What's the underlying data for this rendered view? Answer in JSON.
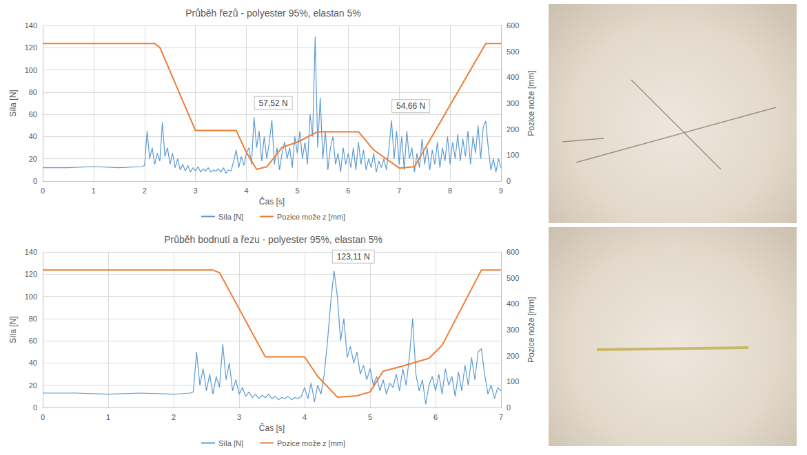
{
  "chart_data": [
    {
      "type": "line",
      "title": "Průběh řezů - polyester 95%, elastan 5%",
      "x_label": "Čas [s]",
      "y_label": "Síla [N]",
      "y2_label": "Pozice nože [mm]",
      "xlim": [
        0,
        9
      ],
      "xticks": [
        0,
        1,
        2,
        3,
        4,
        5,
        6,
        7,
        8,
        9
      ],
      "ylim": [
        0,
        140
      ],
      "yticks": [
        0,
        20,
        40,
        60,
        80,
        100,
        120,
        140
      ],
      "y2lim": [
        0,
        600
      ],
      "y2ticks": [
        0,
        100,
        200,
        300,
        400,
        500,
        600
      ],
      "grid": true,
      "legend": "bottom",
      "series": [
        {
          "name": "Síla [N]",
          "color": "#5b9bd5",
          "axis": "y",
          "x": [
            0,
            0.5,
            1,
            1.5,
            1.95,
            2,
            2.05,
            2.1,
            2.15,
            2.2,
            2.25,
            2.3,
            2.35,
            2.4,
            2.45,
            2.5,
            2.55,
            2.6,
            2.65,
            2.7,
            2.75,
            2.8,
            2.85,
            2.9,
            2.95,
            3,
            3.05,
            3.1,
            3.15,
            3.2,
            3.25,
            3.3,
            3.35,
            3.4,
            3.45,
            3.5,
            3.55,
            3.6,
            3.65,
            3.7,
            3.75,
            3.8,
            3.85,
            3.9,
            3.95,
            4,
            4.05,
            4.1,
            4.15,
            4.2,
            4.25,
            4.3,
            4.35,
            4.4,
            4.45,
            4.5,
            4.55,
            4.6,
            4.65,
            4.7,
            4.75,
            4.8,
            4.85,
            4.9,
            4.95,
            5,
            5.05,
            5.1,
            5.15,
            5.2,
            5.25,
            5.3,
            5.35,
            5.4,
            5.45,
            5.5,
            5.55,
            5.6,
            5.65,
            5.7,
            5.75,
            5.8,
            5.85,
            5.9,
            5.95,
            6,
            6.05,
            6.1,
            6.15,
            6.2,
            6.25,
            6.3,
            6.35,
            6.4,
            6.45,
            6.5,
            6.55,
            6.6,
            6.65,
            6.7,
            6.75,
            6.8,
            6.85,
            6.9,
            6.95,
            7,
            7.05,
            7.1,
            7.15,
            7.2,
            7.25,
            7.3,
            7.35,
            7.4,
            7.45,
            7.5,
            7.55,
            7.6,
            7.65,
            7.7,
            7.75,
            7.8,
            7.85,
            7.9,
            7.95,
            8,
            8.05,
            8.1,
            8.15,
            8.2,
            8.25,
            8.3,
            8.35,
            8.4,
            8.45,
            8.5,
            8.55,
            8.6,
            8.65,
            8.7,
            8.75,
            8.8,
            8.85,
            8.9,
            8.95,
            9
          ],
          "values": [
            12,
            12,
            13,
            12,
            13,
            14,
            45,
            20,
            30,
            15,
            25,
            18,
            53,
            22,
            30,
            15,
            25,
            12,
            20,
            10,
            15,
            9,
            14,
            8,
            12,
            9,
            13,
            8,
            11,
            9,
            12,
            8,
            10,
            9,
            11,
            8,
            12,
            7,
            10,
            9,
            18,
            28,
            12,
            22,
            14,
            25,
            30,
            15,
            57.52,
            30,
            45,
            18,
            40,
            20,
            35,
            55,
            15,
            30,
            10,
            25,
            35,
            20,
            30,
            12,
            40,
            25,
            45,
            20,
            35,
            15,
            60,
            40,
            130,
            30,
            75,
            20,
            45,
            10,
            30,
            40,
            15,
            25,
            8,
            30,
            15,
            25,
            12,
            30,
            10,
            35,
            15,
            28,
            10,
            20,
            12,
            25,
            8,
            18,
            12,
            20,
            10,
            30,
            54.66,
            20,
            45,
            15,
            40,
            10,
            45,
            20,
            30,
            8,
            25,
            12,
            38,
            15,
            30,
            10,
            28,
            15,
            35,
            12,
            30,
            18,
            40,
            15,
            35,
            20,
            42,
            18,
            38,
            22,
            45,
            15,
            40,
            25,
            50,
            20,
            48,
            54,
            30,
            10,
            20,
            8,
            20,
            12
          ]
        },
        {
          "name": "Pozice može z [mm]",
          "color": "#ed7d31",
          "axis": "y2",
          "x": [
            0,
            2.2,
            2.3,
            3.0,
            3.8,
            4.0,
            4.2,
            4.4,
            4.7,
            5.0,
            5.4,
            6.2,
            6.5,
            7.0,
            7.3,
            8.7,
            9.0
          ],
          "values": [
            530,
            530,
            515,
            195,
            195,
            110,
            45,
            55,
            130,
            150,
            190,
            190,
            120,
            50,
            55,
            530,
            530
          ]
        }
      ],
      "annotations": [
        {
          "text": "57,52 N",
          "x": 4.15,
          "y": 57.52
        },
        {
          "text": "54,66 N",
          "x": 6.85,
          "y": 54.66
        }
      ]
    },
    {
      "type": "line",
      "title": "Průběh bodnutí a řezu - polyester 95%, elastan 5%",
      "x_label": "Čas [s]",
      "y_label": "Síla [N]",
      "y2_label": "Pozice nože [mm]",
      "xlim": [
        0,
        7
      ],
      "xticks": [
        0,
        1,
        2,
        3,
        4,
        5,
        6,
        7
      ],
      "ylim": [
        0,
        140
      ],
      "yticks": [
        0,
        20,
        40,
        60,
        80,
        100,
        120,
        140
      ],
      "y2lim": [
        0,
        600
      ],
      "y2ticks": [
        0,
        100,
        200,
        300,
        400,
        500,
        600
      ],
      "grid": true,
      "legend": "bottom",
      "series": [
        {
          "name": "Síla [N]",
          "color": "#5b9bd5",
          "axis": "y",
          "x": [
            0,
            0.5,
            1,
            1.5,
            2,
            2.25,
            2.3,
            2.35,
            2.4,
            2.45,
            2.5,
            2.55,
            2.6,
            2.65,
            2.7,
            2.75,
            2.8,
            2.85,
            2.9,
            2.95,
            3,
            3.05,
            3.1,
            3.15,
            3.2,
            3.25,
            3.3,
            3.35,
            3.4,
            3.45,
            3.5,
            3.55,
            3.6,
            3.65,
            3.7,
            3.75,
            3.8,
            3.85,
            3.9,
            3.95,
            4,
            4.05,
            4.1,
            4.15,
            4.2,
            4.25,
            4.3,
            4.35,
            4.4,
            4.45,
            4.5,
            4.55,
            4.6,
            4.65,
            4.7,
            4.75,
            4.8,
            4.85,
            4.9,
            4.95,
            5,
            5.05,
            5.1,
            5.15,
            5.2,
            5.25,
            5.3,
            5.35,
            5.4,
            5.45,
            5.5,
            5.55,
            5.6,
            5.65,
            5.7,
            5.75,
            5.8,
            5.85,
            5.9,
            5.95,
            6,
            6.05,
            6.1,
            6.15,
            6.2,
            6.25,
            6.3,
            6.35,
            6.4,
            6.45,
            6.5,
            6.55,
            6.6,
            6.65,
            6.7,
            6.75,
            6.8,
            6.85,
            6.9,
            6.95,
            7
          ],
          "values": [
            13,
            13,
            12,
            13,
            12,
            13,
            14,
            50,
            20,
            35,
            15,
            30,
            12,
            28,
            18,
            57,
            25,
            40,
            15,
            25,
            12,
            18,
            10,
            14,
            9,
            12,
            8,
            11,
            9,
            12,
            8,
            10,
            7,
            9,
            8,
            10,
            7,
            9,
            8,
            10,
            18,
            8,
            22,
            5,
            20,
            12,
            30,
            60,
            95,
            123.11,
            100,
            60,
            80,
            45,
            55,
            40,
            50,
            30,
            38,
            25,
            35,
            20,
            28,
            15,
            25,
            12,
            22,
            18,
            30,
            15,
            35,
            20,
            45,
            80,
            30,
            15,
            25,
            3,
            20,
            28,
            15,
            30,
            12,
            35,
            20,
            28,
            10,
            32,
            15,
            38,
            20,
            45,
            25,
            50,
            53,
            30,
            12,
            20,
            8,
            18,
            15
          ]
        },
        {
          "name": "Pozice može z [mm]",
          "color": "#ed7d31",
          "axis": "y2",
          "x": [
            0,
            2.6,
            2.7,
            3.4,
            4.0,
            4.2,
            4.5,
            4.8,
            5.0,
            5.2,
            5.5,
            5.9,
            6.1,
            6.7,
            7.0
          ],
          "values": [
            530,
            530,
            520,
            195,
            195,
            120,
            40,
            45,
            60,
            140,
            160,
            190,
            240,
            530,
            530
          ]
        }
      ],
      "annotations": [
        {
          "text": "123,11 N",
          "x": 4.45,
          "y": 123.11
        }
      ]
    }
  ]
}
